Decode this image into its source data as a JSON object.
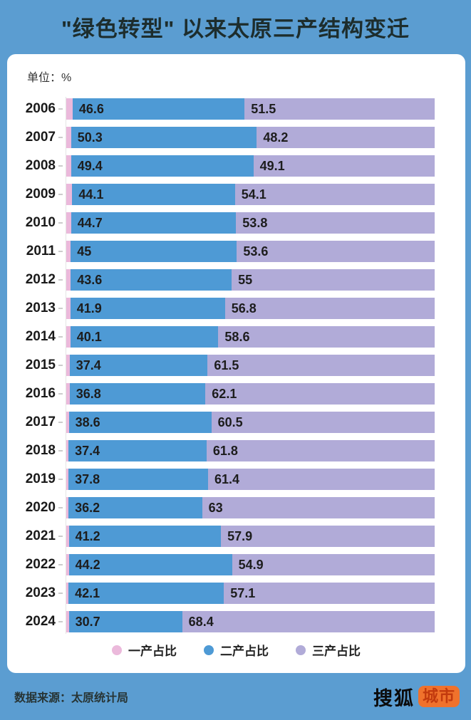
{
  "title": "\"绿色转型\" 以来太原三产结构变迁",
  "unit_label": "单位：%",
  "legend": [
    {
      "label": "一产占比",
      "color": "#EBB9DB"
    },
    {
      "label": "二产占比",
      "color": "#4E9AD5"
    },
    {
      "label": "三产占比",
      "color": "#B1ABD8"
    }
  ],
  "footer": {
    "source": "数据来源：太原统计局",
    "logo_text": "搜狐",
    "logo_badge": "城市"
  },
  "colors": {
    "page_background": "#5B9DD1",
    "card_background": "#FFFFFF",
    "primary_pink": "#EBB9DB",
    "secondary_blue": "#4E9AD5",
    "tertiary_purple": "#B1ABD8",
    "badge_orange": "#F0722C",
    "badge_text": "#C23A0E",
    "title_text": "#1D2D2D"
  },
  "chart_data": {
    "type": "bar",
    "orientation": "horizontal",
    "stacked": true,
    "unit": "%",
    "title": "\"绿色转型\" 以来太原三产结构变迁",
    "xlim": [
      0,
      100
    ],
    "grid": false,
    "legend_position": "bottom",
    "categories": [
      2006,
      2007,
      2008,
      2009,
      2010,
      2011,
      2012,
      2013,
      2014,
      2015,
      2016,
      2017,
      2018,
      2019,
      2020,
      2021,
      2022,
      2023,
      2024
    ],
    "series": [
      {
        "name": "一产占比",
        "color": "#EBB9DB",
        "labels_shown": false,
        "values": [
          1.9,
          1.5,
          1.5,
          1.8,
          1.5,
          1.4,
          1.4,
          1.3,
          1.3,
          1.1,
          1.1,
          0.9,
          0.8,
          0.8,
          0.8,
          0.9,
          0.9,
          0.8,
          0.9
        ]
      },
      {
        "name": "二产占比",
        "color": "#4E9AD5",
        "labels_shown": true,
        "values": [
          46.6,
          50.3,
          49.4,
          44.1,
          44.7,
          45,
          43.6,
          41.9,
          40.1,
          37.4,
          36.8,
          38.6,
          37.4,
          37.8,
          36.2,
          41.2,
          44.2,
          42.1,
          30.7
        ]
      },
      {
        "name": "三产占比",
        "color": "#B1ABD8",
        "labels_shown": true,
        "values": [
          51.5,
          48.2,
          49.1,
          54.1,
          53.8,
          53.6,
          55,
          56.8,
          58.6,
          61.5,
          62.1,
          60.5,
          61.8,
          61.4,
          63,
          57.9,
          54.9,
          57.1,
          68.4
        ]
      }
    ]
  }
}
